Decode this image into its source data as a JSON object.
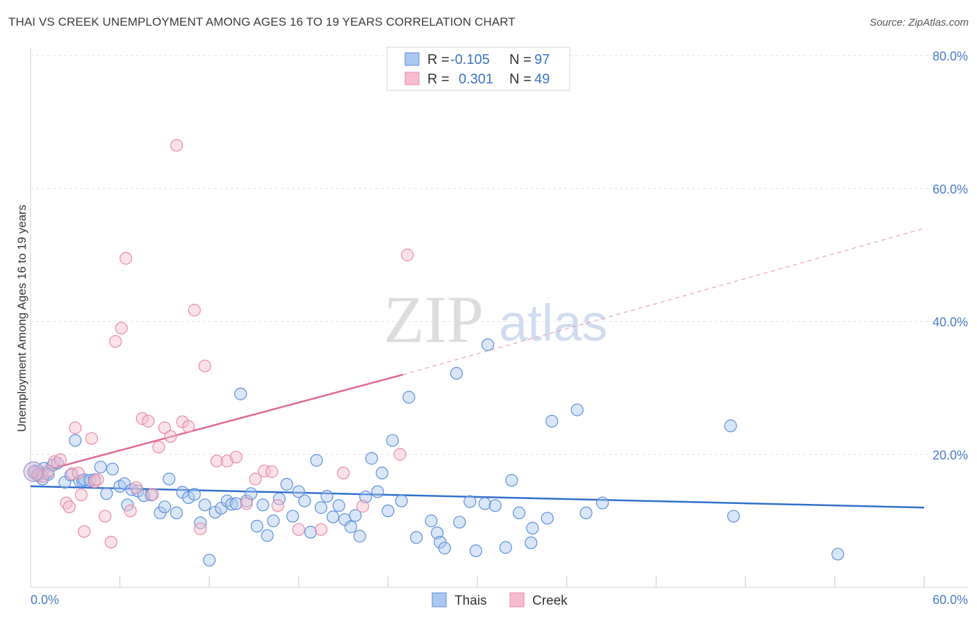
{
  "title": "THAI VS CREEK UNEMPLOYMENT AMONG AGES 16 TO 19 YEARS CORRELATION CHART",
  "source": "Source: ZipAtlas.com",
  "watermark": {
    "zip": "ZIP",
    "atlas": "atlas"
  },
  "chart_data": {
    "type": "scatter",
    "title": "THAI VS CREEK UNEMPLOYMENT AMONG AGES 16 TO 19 YEARS CORRELATION CHART",
    "xlabel": "",
    "ylabel": "Unemployment Among Ages 16 to 19 years",
    "xlim": [
      0,
      60
    ],
    "ylim": [
      0,
      80
    ],
    "x_tick_labels": [
      "0.0%",
      "60.0%"
    ],
    "y_ticks": [
      20,
      40,
      60,
      80
    ],
    "y_tick_labels": [
      "20.0%",
      "40.0%",
      "60.0%",
      "80.0%"
    ],
    "grid": true,
    "legend_position": "top-center",
    "legend": [
      {
        "r_label": "R =",
        "r_value": "-0.105",
        "n_label": "N =",
        "n_value": "97"
      },
      {
        "r_label": "R =",
        "r_value": "0.301",
        "n_label": "N =",
        "n_value": "49"
      }
    ],
    "series": [
      {
        "name": "Thais",
        "color": "#5b8fd9",
        "fill": "#aac8f0",
        "trend": {
          "x": [
            0,
            60
          ],
          "y": [
            15.2,
            12.0
          ]
        },
        "points": [
          [
            0.2,
            17.3
          ],
          [
            0.3,
            17.5
          ],
          [
            0.5,
            16.8
          ],
          [
            0.7,
            17.1
          ],
          [
            0.8,
            16.3
          ],
          [
            0.9,
            17.9
          ],
          [
            1.1,
            17.2
          ],
          [
            1.2,
            17.0
          ],
          [
            1.5,
            18.4
          ],
          [
            1.8,
            18.7
          ],
          [
            2.3,
            15.8
          ],
          [
            2.7,
            16.9
          ],
          [
            3.0,
            22.1
          ],
          [
            3.3,
            16.0
          ],
          [
            3.5,
            16.0
          ],
          [
            3.6,
            16.2
          ],
          [
            4.0,
            16.1
          ],
          [
            4.3,
            16.2
          ],
          [
            4.7,
            18.1
          ],
          [
            5.1,
            14.1
          ],
          [
            5.5,
            17.8
          ],
          [
            6.0,
            15.2
          ],
          [
            6.3,
            15.6
          ],
          [
            6.5,
            12.4
          ],
          [
            6.8,
            14.7
          ],
          [
            7.2,
            14.5
          ],
          [
            7.6,
            13.8
          ],
          [
            8.1,
            13.9
          ],
          [
            8.7,
            11.2
          ],
          [
            9.0,
            12.1
          ],
          [
            9.3,
            16.3
          ],
          [
            9.8,
            11.2
          ],
          [
            10.2,
            14.3
          ],
          [
            10.6,
            13.5
          ],
          [
            11.0,
            14.0
          ],
          [
            11.4,
            9.7
          ],
          [
            11.7,
            12.4
          ],
          [
            12.0,
            4.1
          ],
          [
            12.4,
            11.3
          ],
          [
            12.8,
            11.9
          ],
          [
            13.2,
            13.0
          ],
          [
            13.5,
            12.5
          ],
          [
            13.8,
            12.6
          ],
          [
            14.1,
            29.1
          ],
          [
            14.5,
            13.0
          ],
          [
            14.8,
            14.1
          ],
          [
            15.2,
            9.2
          ],
          [
            15.6,
            12.4
          ],
          [
            15.9,
            7.8
          ],
          [
            16.3,
            10.0
          ],
          [
            16.7,
            13.3
          ],
          [
            17.2,
            15.5
          ],
          [
            17.6,
            10.7
          ],
          [
            18.0,
            14.4
          ],
          [
            18.4,
            13.0
          ],
          [
            18.8,
            8.3
          ],
          [
            19.2,
            19.1
          ],
          [
            19.5,
            12.0
          ],
          [
            19.9,
            13.7
          ],
          [
            20.3,
            10.6
          ],
          [
            20.7,
            12.3
          ],
          [
            21.1,
            10.2
          ],
          [
            21.5,
            9.1
          ],
          [
            21.8,
            10.8
          ],
          [
            22.1,
            7.7
          ],
          [
            22.5,
            13.6
          ],
          [
            22.9,
            19.4
          ],
          [
            23.3,
            14.4
          ],
          [
            23.6,
            17.2
          ],
          [
            24.0,
            11.5
          ],
          [
            24.3,
            22.1
          ],
          [
            24.9,
            13.0
          ],
          [
            25.4,
            28.6
          ],
          [
            25.9,
            7.5
          ],
          [
            26.9,
            10.0
          ],
          [
            27.3,
            8.2
          ],
          [
            27.5,
            6.8
          ],
          [
            27.8,
            5.9
          ],
          [
            28.8,
            9.8
          ],
          [
            28.6,
            32.2
          ],
          [
            29.9,
            5.5
          ],
          [
            29.5,
            12.9
          ],
          [
            30.5,
            12.6
          ],
          [
            30.7,
            36.5
          ],
          [
            31.2,
            12.3
          ],
          [
            31.9,
            6.0
          ],
          [
            32.3,
            16.1
          ],
          [
            32.8,
            11.2
          ],
          [
            33.6,
            6.7
          ],
          [
            33.7,
            8.9
          ],
          [
            34.7,
            10.4
          ],
          [
            35.0,
            25.0
          ],
          [
            36.7,
            26.7
          ],
          [
            37.3,
            11.2
          ],
          [
            38.4,
            12.7
          ],
          [
            47.0,
            24.3
          ],
          [
            47.2,
            10.7
          ],
          [
            54.2,
            5.0
          ]
        ]
      },
      {
        "name": "Creek",
        "color": "#e88aa8",
        "fill": "#f7bccd",
        "trend": {
          "x": [
            0,
            25.0
          ],
          "y": [
            17.0,
            32.0
          ]
        },
        "trend_extension": {
          "x": [
            25.0,
            60
          ],
          "y": [
            32.0,
            54.0
          ]
        },
        "points": [
          [
            0.2,
            17.4
          ],
          [
            0.5,
            17.0
          ],
          [
            0.8,
            16.7
          ],
          [
            1.2,
            17.5
          ],
          [
            1.6,
            18.9
          ],
          [
            2.0,
            19.2
          ],
          [
            2.4,
            12.7
          ],
          [
            2.6,
            12.1
          ],
          [
            2.8,
            17.1
          ],
          [
            3.0,
            24.0
          ],
          [
            3.2,
            17.2
          ],
          [
            3.4,
            13.9
          ],
          [
            3.6,
            8.4
          ],
          [
            4.1,
            22.4
          ],
          [
            4.3,
            15.9
          ],
          [
            4.5,
            16.2
          ],
          [
            5.0,
            10.7
          ],
          [
            5.4,
            6.8
          ],
          [
            5.7,
            37.0
          ],
          [
            6.1,
            39.0
          ],
          [
            6.4,
            49.5
          ],
          [
            6.7,
            11.5
          ],
          [
            7.1,
            15.0
          ],
          [
            7.5,
            25.4
          ],
          [
            7.9,
            25.0
          ],
          [
            8.2,
            14.0
          ],
          [
            8.6,
            21.1
          ],
          [
            9.0,
            24.0
          ],
          [
            9.4,
            22.7
          ],
          [
            9.8,
            66.5
          ],
          [
            10.2,
            24.9
          ],
          [
            10.6,
            24.2
          ],
          [
            11.0,
            41.7
          ],
          [
            11.4,
            8.8
          ],
          [
            11.7,
            33.3
          ],
          [
            12.5,
            19.0
          ],
          [
            13.2,
            19.0
          ],
          [
            13.8,
            19.6
          ],
          [
            14.5,
            12.6
          ],
          [
            15.1,
            16.3
          ],
          [
            15.7,
            17.5
          ],
          [
            16.2,
            17.4
          ],
          [
            16.6,
            12.3
          ],
          [
            18.0,
            8.7
          ],
          [
            19.5,
            8.7
          ],
          [
            21.0,
            17.2
          ],
          [
            22.3,
            12.2
          ],
          [
            24.8,
            20.0
          ],
          [
            25.3,
            50.0
          ]
        ]
      }
    ]
  }
}
